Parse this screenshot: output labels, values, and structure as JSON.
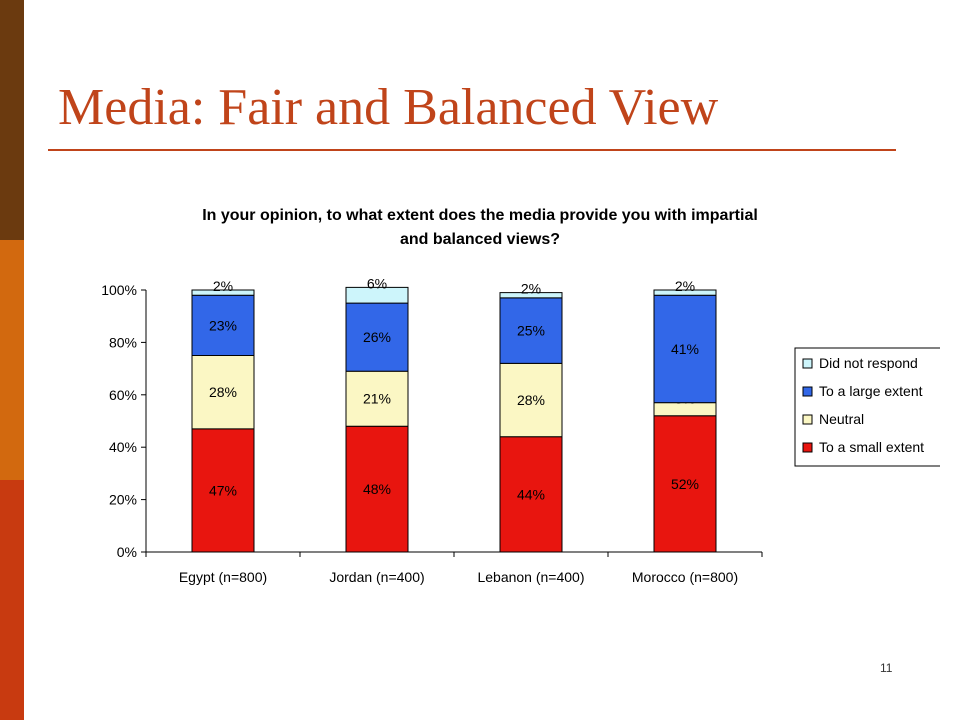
{
  "slide": {
    "title": "Media: Fair and Balanced View",
    "page_number": "11"
  },
  "colors": {
    "side_bar_top": "#6b3a0f",
    "side_bar_middle": "#d2690f",
    "side_bar_bottom": "#c83a10",
    "title": "#c0441a"
  },
  "chart_data": {
    "type": "bar",
    "stacked": true,
    "title": "In your opinion, to what extent does the media provide you with impartial and balanced views?",
    "title_lines": [
      "In your opinion, to what extent does the media provide you with impartial",
      "and balanced views?"
    ],
    "xlabel": "",
    "ylabel": "",
    "categories": [
      "Egypt (n=800)",
      "Jordan (n=400)",
      "Lebanon (n=400)",
      "Morocco (n=800)"
    ],
    "ylim": [
      0,
      100
    ],
    "yticks": [
      0,
      20,
      40,
      60,
      80,
      100
    ],
    "ytick_labels": [
      "0%",
      "20%",
      "40%",
      "60%",
      "80%",
      "100%"
    ],
    "grid": false,
    "legend_position": "right",
    "series": [
      {
        "name": "To a small extent",
        "color": "#e8150f",
        "values": [
          47,
          48,
          44,
          52
        ],
        "labels": [
          "47%",
          "48%",
          "44%",
          "52%"
        ]
      },
      {
        "name": "Neutral",
        "color": "#fbf7c4",
        "values": [
          28,
          21,
          28,
          5
        ],
        "labels": [
          "28%",
          "21%",
          "28%",
          "5%"
        ]
      },
      {
        "name": "To a large extent",
        "color": "#3267e8",
        "values": [
          23,
          26,
          25,
          41
        ],
        "labels": [
          "23%",
          "26%",
          "25%",
          "41%"
        ]
      },
      {
        "name": "Did not respond",
        "color": "#cdf5fb",
        "values": [
          2,
          6,
          2,
          2
        ],
        "labels": [
          "2%",
          "6%",
          "2%",
          "2%"
        ]
      }
    ],
    "legend_order": [
      "Did not respond",
      "To a large extent",
      "Neutral",
      "To a small extent"
    ]
  }
}
